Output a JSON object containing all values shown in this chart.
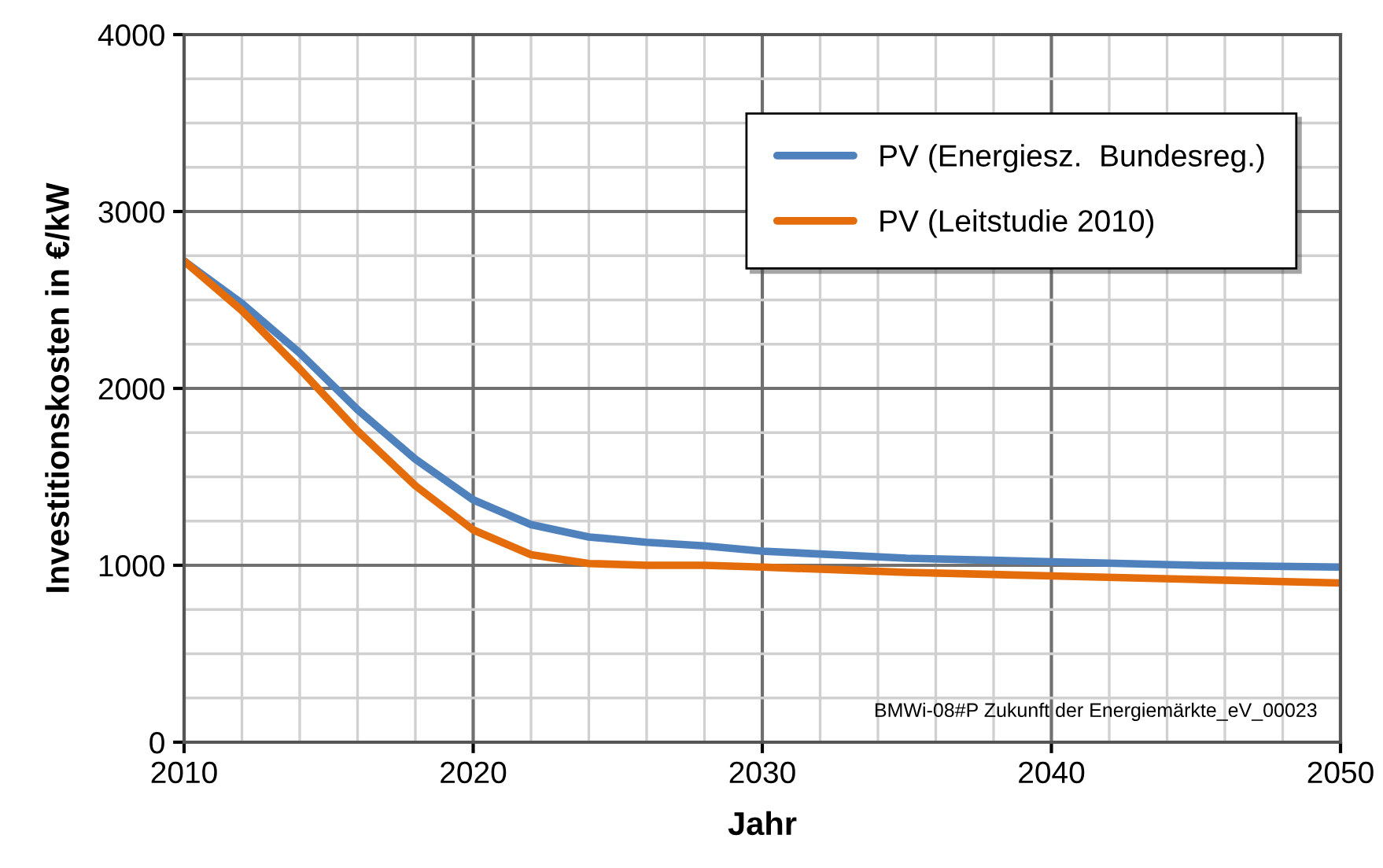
{
  "chart_data": {
    "type": "line",
    "xlabel": "Jahr",
    "ylabel": "Investitionskosten in €/kW",
    "xlim": [
      2010,
      2050
    ],
    "xticks": [
      2010,
      2020,
      2030,
      2040,
      2050
    ],
    "ylim": [
      0,
      4000
    ],
    "yticks": [
      0,
      1000,
      2000,
      3000,
      4000
    ],
    "x": [
      2010,
      2012,
      2014,
      2016,
      2018,
      2020,
      2022,
      2024,
      2026,
      2028,
      2030,
      2035,
      2040,
      2045,
      2050
    ],
    "series": [
      {
        "name": "PV (Energiesz.  Bundesreg.)",
        "color": "#4f81bd",
        "values": [
          2720,
          2480,
          2200,
          1880,
          1600,
          1370,
          1230,
          1160,
          1130,
          1110,
          1080,
          1040,
          1020,
          1000,
          990
        ]
      },
      {
        "name": "PV (Leitstudie 2010)",
        "color": "#e46c0a",
        "values": [
          2720,
          2440,
          2110,
          1760,
          1450,
          1200,
          1060,
          1010,
          1000,
          1000,
          990,
          960,
          940,
          920,
          900
        ]
      }
    ],
    "grid": true,
    "legend": "top right",
    "line_style": "solid",
    "marker": "none",
    "annotations": [
      "BMWi-08#P Zukunft der Energiemärkte_eV_00023"
    ]
  }
}
